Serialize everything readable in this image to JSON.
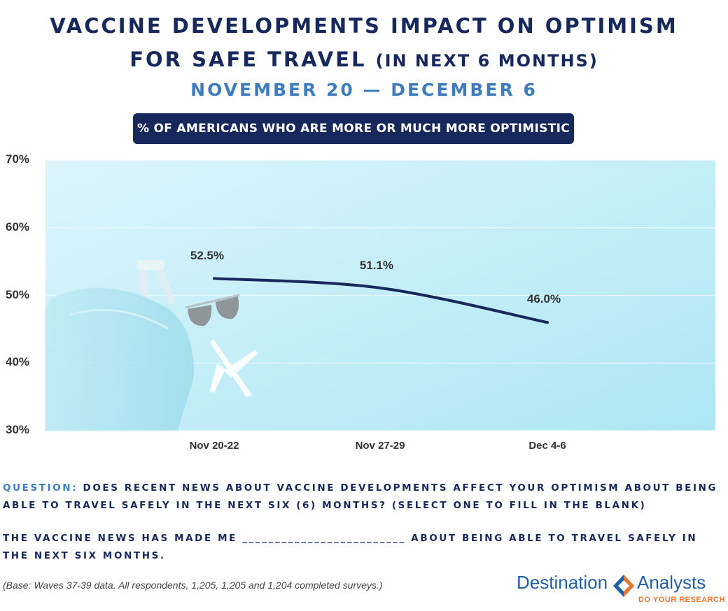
{
  "header": {
    "title_line1": "VACCINE DEVELOPMENTS IMPACT ON OPTIMISM",
    "title_line2_main": "FOR SAFE TRAVEL",
    "title_line2_paren": "(IN NEXT 6 MONTHS)",
    "date_range": "NOVEMBER 20 — DECEMBER 6",
    "pill": "% OF AMERICANS WHO ARE MORE OR MUCH MORE OPTIMISTIC"
  },
  "chart_data": {
    "type": "line",
    "categories": [
      "Nov 20-22",
      "Nov 27-29",
      "Dec 4-6"
    ],
    "series": [
      {
        "values": [
          52.5,
          51.1,
          46.0
        ],
        "data_labels": [
          "52.5%",
          "51.1%",
          "46.0%"
        ]
      }
    ],
    "ylim": [
      30,
      70
    ],
    "yticks": [
      "30%",
      "40%",
      "50%",
      "60%",
      "70%"
    ],
    "line_color": "#16285c",
    "grid": true
  },
  "question": {
    "label": "QUESTION:",
    "text": "DOES RECENT NEWS ABOUT VACCINE DEVELOPMENTS AFFECT YOUR OPTIMISM ABOUT BEING ABLE TO TRAVEL SAFELY IN THE NEXT SIX (6) MONTHS? (SELECT ONE TO FILL IN THE BLANK)",
    "statement": "THE VACCINE NEWS HAS MADE ME _________________________ ABOUT BEING ABLE TO TRAVEL SAFELY IN THE NEXT SIX MONTHS."
  },
  "footnote": "(Base: Waves 37-39 data. All respondents, 1,205, 1,205 and 1,204 completed surveys.)",
  "logo": {
    "left": "Destination",
    "right": "Analysts",
    "tagline": "DO YOUR RESEARCH",
    "colors": {
      "blue": "#1f5fa8",
      "orange": "#e8772e"
    }
  }
}
